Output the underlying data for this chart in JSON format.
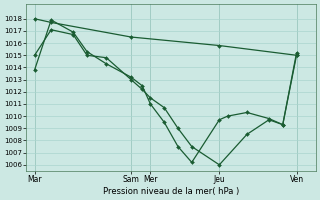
{
  "background_color": "#cce8e3",
  "grid_color": "#aad4ce",
  "line_color": "#1a5c32",
  "ylabel": "Pression niveau de la mer( hPa )",
  "xtick_labels": [
    "Mar",
    "Sam",
    "Mer",
    "Jeu",
    "Ven"
  ],
  "xtick_positions": [
    0,
    3.5,
    4.2,
    6.7,
    9.5
  ],
  "ylim": [
    1005.5,
    1019.2
  ],
  "yticks": [
    1006,
    1007,
    1008,
    1009,
    1010,
    1011,
    1012,
    1013,
    1014,
    1015,
    1016,
    1017,
    1018
  ],
  "xlim": [
    -0.3,
    10.2
  ],
  "line1_x": [
    0,
    0.6,
    3.5,
    6.7,
    9.5
  ],
  "line1_y": [
    1018.0,
    1017.7,
    1016.5,
    1015.8,
    1015.0
  ],
  "line2_x": [
    0,
    0.6,
    1.4,
    1.9,
    2.6,
    3.5,
    3.9,
    4.2,
    4.7,
    5.2,
    5.7,
    6.7,
    7.7,
    8.5,
    9.0,
    9.5
  ],
  "line2_y": [
    1015.0,
    1017.1,
    1016.7,
    1015.0,
    1014.8,
    1013.0,
    1012.2,
    1011.5,
    1010.7,
    1009.0,
    1007.5,
    1006.0,
    1008.5,
    1009.7,
    1009.3,
    1015.0
  ],
  "line3_x": [
    0,
    0.6,
    1.4,
    1.9,
    2.6,
    3.5,
    3.9,
    4.2,
    4.7,
    5.2,
    5.7,
    6.7,
    7.0,
    7.7,
    8.5,
    9.0,
    9.5
  ],
  "line3_y": [
    1013.8,
    1017.9,
    1016.9,
    1015.3,
    1014.3,
    1013.2,
    1012.5,
    1011.0,
    1009.5,
    1007.5,
    1006.2,
    1009.7,
    1010.0,
    1010.3,
    1009.8,
    1009.3,
    1015.2
  ],
  "vline_color": "#7aaa98",
  "spine_color": "#4a7a5a"
}
